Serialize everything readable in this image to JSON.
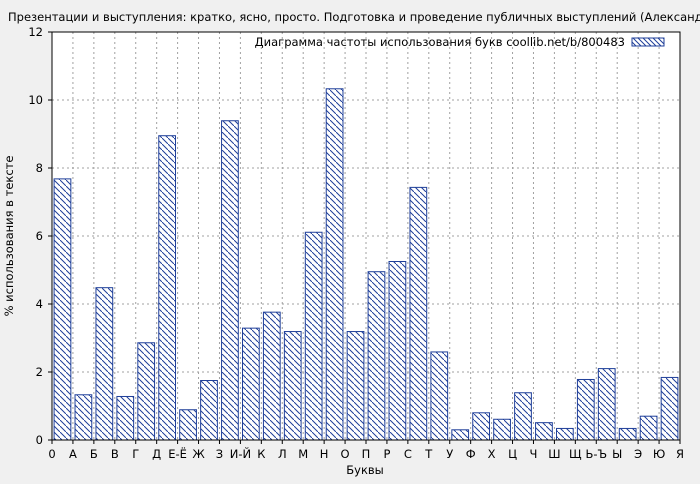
{
  "chart_data": {
    "type": "bar",
    "title": "Презентации и выступления: кратко, ясно, просто. Подготовка и проведение публичных выступлений (Александр Яныхбаш",
    "xlabel": "Буквы",
    "ylabel": "% использования в тексте",
    "legend_label": "Диаграмма частоты использования букв coollib.net/b/800483",
    "legend_position": "top-right",
    "grid": true,
    "ylim": [
      0,
      12
    ],
    "y_ticks": [
      "0",
      "2",
      "4",
      "6",
      "8",
      "10",
      "12"
    ],
    "x_tick_labels": [
      "0",
      "А",
      "Б",
      "В",
      "Г",
      "Д",
      "Е-Ё",
      "Ж",
      "З",
      "И-Й",
      "К",
      "Л",
      "М",
      "Н",
      "О",
      "П",
      "Р",
      "С",
      "Т",
      "У",
      "Ф",
      "Х",
      "Ц",
      "Ч",
      "Ш",
      "Щ",
      "Ь-Ъ",
      "Ы",
      "Э",
      "Ю",
      "Я"
    ],
    "categories": [
      "А",
      "Б",
      "В",
      "Г",
      "Д",
      "Е-Ё",
      "Ж",
      "З",
      "И-Й",
      "К",
      "Л",
      "М",
      "Н",
      "О",
      "П",
      "Р",
      "С",
      "Т",
      "У",
      "Ф",
      "Х",
      "Ц",
      "Ч",
      "Ш",
      "Щ",
      "Ь-Ъ",
      "Ы",
      "Э",
      "Ю",
      "Я"
    ],
    "values": [
      7.68,
      1.33,
      4.48,
      1.28,
      2.86,
      8.95,
      0.89,
      1.75,
      9.39,
      3.29,
      3.76,
      3.19,
      6.11,
      10.33,
      3.19,
      4.95,
      5.25,
      7.43,
      2.59,
      0.3,
      0.8,
      0.61,
      1.39,
      0.51,
      0.34,
      1.78,
      2.1,
      0.34,
      0.7,
      1.84
    ],
    "colors": {
      "bar_stroke": "#1f3f99",
      "hatch": "#1f3f99",
      "grid": "#a0a0a0",
      "background": "#f0f0f0",
      "plot_background": "#ffffff"
    }
  }
}
